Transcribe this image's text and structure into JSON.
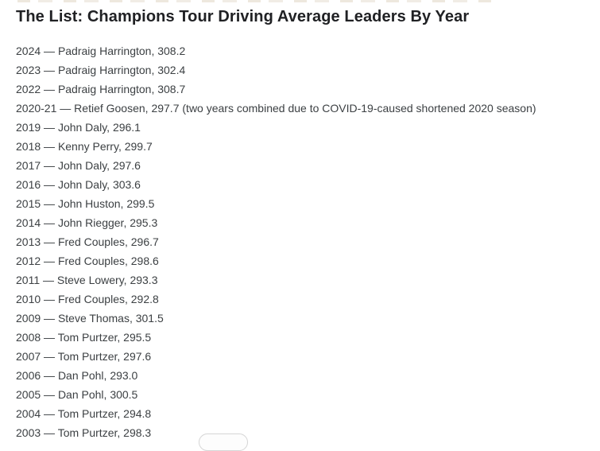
{
  "page": {
    "title": "The List: Champions Tour Driving Average Leaders By Year"
  },
  "list": {
    "separator": "—",
    "entries": [
      {
        "year": "2024",
        "player": "Padraig Harrington",
        "average": "308.2"
      },
      {
        "year": "2023",
        "player": "Padraig Harrington",
        "average": "302.4"
      },
      {
        "year": "2022",
        "player": "Padraig Harrington",
        "average": "308.7"
      },
      {
        "year": "2020-21",
        "player": "Retief Goosen",
        "average": "297.7",
        "note": "(two years combined due to COVID-19-caused shortened 2020 season)"
      },
      {
        "year": "2019",
        "player": "John Daly",
        "average": "296.1"
      },
      {
        "year": "2018",
        "player": "Kenny Perry",
        "average": "299.7"
      },
      {
        "year": "2017",
        "player": "John Daly",
        "average": "297.6"
      },
      {
        "year": "2016",
        "player": "John Daly",
        "average": "303.6"
      },
      {
        "year": "2015",
        "player": "John Huston",
        "average": "299.5"
      },
      {
        "year": "2014",
        "player": "John Riegger",
        "average": "295.3"
      },
      {
        "year": "2013",
        "player": "Fred Couples",
        "average": "296.7"
      },
      {
        "year": "2012",
        "player": "Fred Couples",
        "average": "298.6"
      },
      {
        "year": "2011",
        "player": "Steve Lowery",
        "average": "293.3"
      },
      {
        "year": "2010",
        "player": "Fred Couples",
        "average": "292.8"
      },
      {
        "year": "2009",
        "player": "Steve Thomas",
        "average": "301.5"
      },
      {
        "year": "2008",
        "player": "Tom Purtzer",
        "average": "295.5"
      },
      {
        "year": "2007",
        "player": "Tom Purtzer",
        "average": "297.6"
      },
      {
        "year": "2006",
        "player": "Dan Pohl",
        "average": "293.0"
      },
      {
        "year": "2005",
        "player": "Dan Pohl",
        "average": "300.5"
      },
      {
        "year": "2004",
        "player": "Tom Purtzer",
        "average": "294.8"
      },
      {
        "year": "2003",
        "player": "Tom Purtzer",
        "average": "298.3"
      }
    ]
  },
  "colors": {
    "background": "#ffffff",
    "title_text": "#202124",
    "body_text": "#3c4043",
    "button_border": "#d6d6d6",
    "button_fill": "#fdfdfd"
  }
}
